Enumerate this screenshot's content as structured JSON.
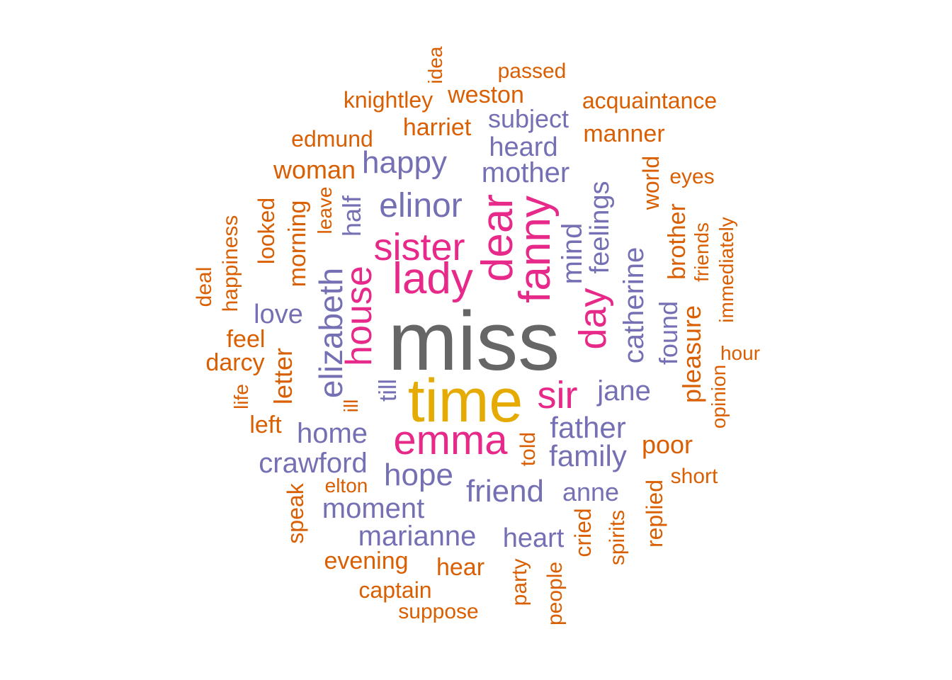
{
  "palette": {
    "gray": "#666666",
    "gold": "#e6ab02",
    "pink": "#e7298a",
    "purple": "#7570b3",
    "orange": "#d95f02"
  },
  "words": [
    {
      "text": "miss",
      "color": "gray",
      "rot": false
    },
    {
      "text": "time",
      "color": "gold",
      "rot": false
    },
    {
      "text": "emma",
      "color": "pink",
      "rot": false
    },
    {
      "text": "sir",
      "color": "pink",
      "rot": false
    },
    {
      "text": "lady",
      "color": "pink",
      "rot": false
    },
    {
      "text": "sister",
      "color": "pink",
      "rot": false
    },
    {
      "text": "dear",
      "color": "pink",
      "rot": true
    },
    {
      "text": "fanny",
      "color": "pink",
      "rot": true
    },
    {
      "text": "day",
      "color": "pink",
      "rot": true
    },
    {
      "text": "house",
      "color": "pink",
      "rot": true
    },
    {
      "text": "elinor",
      "color": "purple",
      "rot": false
    },
    {
      "text": "happy",
      "color": "purple",
      "rot": false
    },
    {
      "text": "mother",
      "color": "purple",
      "rot": false
    },
    {
      "text": "heard",
      "color": "purple",
      "rot": false
    },
    {
      "text": "subject",
      "color": "purple",
      "rot": false
    },
    {
      "text": "love",
      "color": "purple",
      "rot": false
    },
    {
      "text": "home",
      "color": "purple",
      "rot": false
    },
    {
      "text": "crawford",
      "color": "purple",
      "rot": false
    },
    {
      "text": "hope",
      "color": "purple",
      "rot": false
    },
    {
      "text": "moment",
      "color": "purple",
      "rot": false
    },
    {
      "text": "marianne",
      "color": "purple",
      "rot": false
    },
    {
      "text": "friend",
      "color": "purple",
      "rot": false
    },
    {
      "text": "father",
      "color": "purple",
      "rot": false
    },
    {
      "text": "family",
      "color": "purple",
      "rot": false
    },
    {
      "text": "jane",
      "color": "purple",
      "rot": false
    },
    {
      "text": "anne",
      "color": "purple",
      "rot": false
    },
    {
      "text": "heart",
      "color": "purple",
      "rot": false
    },
    {
      "text": "elizabeth",
      "color": "purple",
      "rot": true
    },
    {
      "text": "half",
      "color": "purple",
      "rot": true
    },
    {
      "text": "till",
      "color": "purple",
      "rot": true
    },
    {
      "text": "mind",
      "color": "purple",
      "rot": true
    },
    {
      "text": "feelings",
      "color": "purple",
      "rot": true
    },
    {
      "text": "catherine",
      "color": "purple",
      "rot": true
    },
    {
      "text": "found",
      "color": "purple",
      "rot": true
    },
    {
      "text": "passed",
      "color": "orange",
      "rot": false
    },
    {
      "text": "idea",
      "color": "orange",
      "rot": true
    },
    {
      "text": "knightley",
      "color": "orange",
      "rot": false
    },
    {
      "text": "weston",
      "color": "orange",
      "rot": false
    },
    {
      "text": "acquaintance",
      "color": "orange",
      "rot": false
    },
    {
      "text": "harriet",
      "color": "orange",
      "rot": false
    },
    {
      "text": "manner",
      "color": "orange",
      "rot": false
    },
    {
      "text": "edmund",
      "color": "orange",
      "rot": false
    },
    {
      "text": "woman",
      "color": "orange",
      "rot": false
    },
    {
      "text": "eyes",
      "color": "orange",
      "rot": false
    },
    {
      "text": "world",
      "color": "orange",
      "rot": true
    },
    {
      "text": "brother",
      "color": "orange",
      "rot": true
    },
    {
      "text": "friends",
      "color": "orange",
      "rot": true
    },
    {
      "text": "immediately",
      "color": "orange",
      "rot": true
    },
    {
      "text": "pleasure",
      "color": "orange",
      "rot": true
    },
    {
      "text": "hour",
      "color": "orange",
      "rot": false
    },
    {
      "text": "opinion",
      "color": "orange",
      "rot": true
    },
    {
      "text": "poor",
      "color": "orange",
      "rot": false
    },
    {
      "text": "short",
      "color": "orange",
      "rot": false
    },
    {
      "text": "replied",
      "color": "orange",
      "rot": true
    },
    {
      "text": "spirits",
      "color": "orange",
      "rot": true
    },
    {
      "text": "cried",
      "color": "orange",
      "rot": true
    },
    {
      "text": "people",
      "color": "orange",
      "rot": true
    },
    {
      "text": "party",
      "color": "orange",
      "rot": true
    },
    {
      "text": "told",
      "color": "orange",
      "rot": true
    },
    {
      "text": "hear",
      "color": "orange",
      "rot": false
    },
    {
      "text": "suppose",
      "color": "orange",
      "rot": false
    },
    {
      "text": "captain",
      "color": "orange",
      "rot": false
    },
    {
      "text": "evening",
      "color": "orange",
      "rot": false
    },
    {
      "text": "elton",
      "color": "orange",
      "rot": false
    },
    {
      "text": "speak",
      "color": "orange",
      "rot": true
    },
    {
      "text": "ill",
      "color": "orange",
      "rot": true
    },
    {
      "text": "left",
      "color": "orange",
      "rot": false
    },
    {
      "text": "letter",
      "color": "orange",
      "rot": true
    },
    {
      "text": "life",
      "color": "orange",
      "rot": true
    },
    {
      "text": "darcy",
      "color": "orange",
      "rot": false
    },
    {
      "text": "feel",
      "color": "orange",
      "rot": false
    },
    {
      "text": "deal",
      "color": "orange",
      "rot": true
    },
    {
      "text": "happiness",
      "color": "orange",
      "rot": true
    },
    {
      "text": "looked",
      "color": "orange",
      "rot": true
    },
    {
      "text": "morning",
      "color": "orange",
      "rot": true
    },
    {
      "text": "leave",
      "color": "orange",
      "rot": true
    }
  ]
}
